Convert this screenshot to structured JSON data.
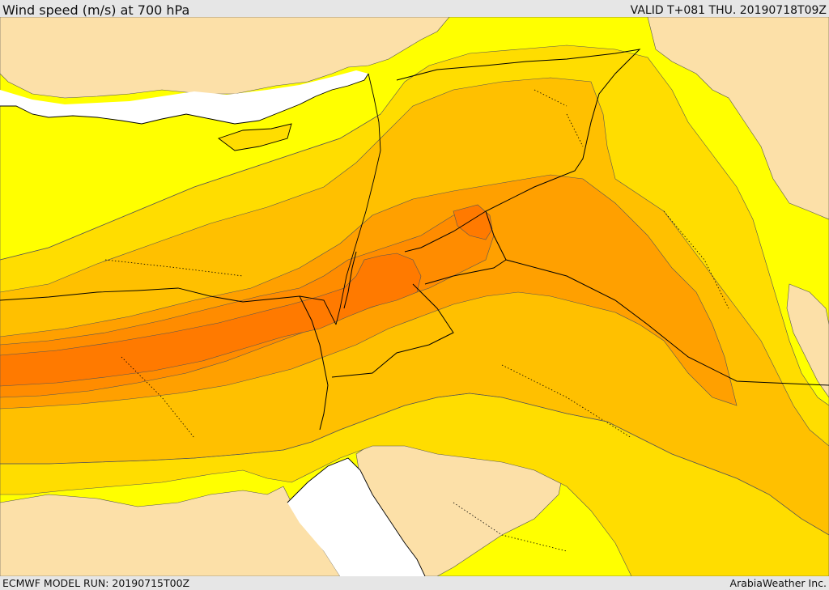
{
  "header": {
    "title": "Wind speed (m/s) at 700 hPa",
    "valid": "VALID T+081 THU. 20190718T09Z"
  },
  "footer": {
    "model_run": "ECMWF MODEL RUN: 20190715T00Z",
    "credit": "ArabiaWeather Inc."
  },
  "map": {
    "colors": {
      "sea": "#ffffff",
      "land_calm": "#fce0a8",
      "band_1": "#ffff00",
      "band_2": "#ffdd00",
      "band_3": "#ffc000",
      "band_4": "#ffa000",
      "band_5": "#ff8c00",
      "band_6": "#ff7a00",
      "coastline": "#000000",
      "border": "#000000",
      "contour": "#555555"
    }
  }
}
